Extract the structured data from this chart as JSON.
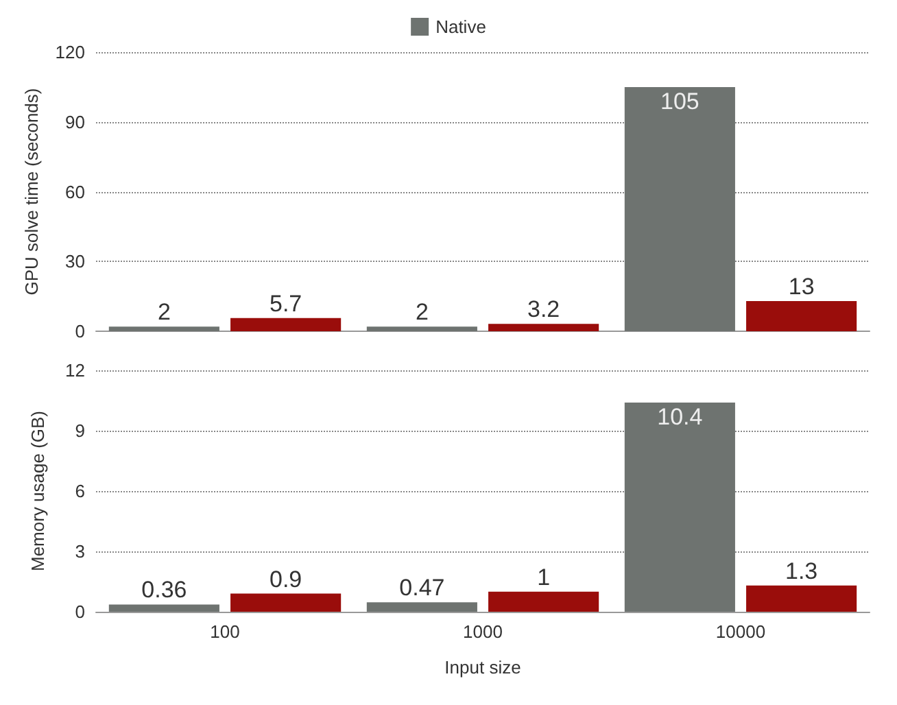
{
  "chart_data": [
    {
      "type": "bar",
      "ylabel": "GPU solve time (seconds)",
      "categories": [
        "100",
        "1000",
        "10000"
      ],
      "series": [
        {
          "name": "Native",
          "color": "#6e7370",
          "values": [
            2,
            2,
            105
          ]
        },
        {
          "color": "#9a0d0b",
          "values": [
            5.7,
            3.2,
            13
          ]
        }
      ],
      "ylim": [
        0,
        120
      ],
      "yticks": [
        0,
        30,
        60,
        90,
        120
      ],
      "grid": "y",
      "legend": "top",
      "data_labels": true,
      "tick_labels": "y"
    },
    {
      "type": "bar",
      "ylabel": "Memory usage (GB)",
      "xlabel": "Input size",
      "categories": [
        "100",
        "1000",
        "10000"
      ],
      "series": [
        {
          "color": "#6e7370",
          "values": [
            0.36,
            0.47,
            10.4
          ]
        },
        {
          "color": "#9a0d0b",
          "values": [
            0.9,
            1,
            1.3
          ]
        }
      ],
      "ylim": [
        0,
        12
      ],
      "yticks": [
        0,
        3,
        6,
        9,
        12
      ],
      "grid": "y",
      "data_labels": true
    }
  ]
}
